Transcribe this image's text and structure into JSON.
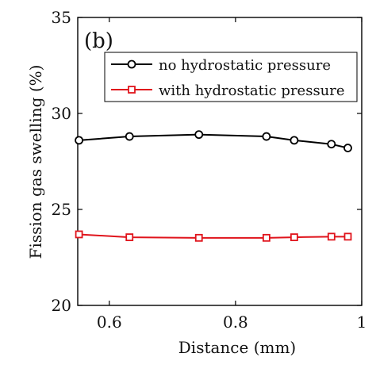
{
  "chart_data": {
    "type": "line",
    "panel_label": "(b)",
    "xlabel": "Distance (mm)",
    "ylabel": "Fission gas swelling (%)",
    "xlim": [
      0.55,
      1.0
    ],
    "ylim": [
      20,
      35
    ],
    "xticks": [
      0.6,
      0.8,
      1.0
    ],
    "xtick_labels": [
      "0.6",
      "0.8",
      "1"
    ],
    "yticks": [
      20,
      25,
      30,
      35
    ],
    "ytick_labels": [
      "20",
      "25",
      "30",
      "35"
    ],
    "grid": false,
    "legend_position": "top-right",
    "series": [
      {
        "name": "no hydrostatic pressure",
        "color": "#000000",
        "marker": "circle",
        "x": [
          0.552,
          0.632,
          0.742,
          0.849,
          0.893,
          0.952,
          0.978
        ],
        "y": [
          28.6,
          28.8,
          28.9,
          28.8,
          28.6,
          28.4,
          28.2
        ]
      },
      {
        "name": "with hydrostatic pressure",
        "color": "#e0141c",
        "marker": "square",
        "x": [
          0.552,
          0.632,
          0.742,
          0.849,
          0.893,
          0.952,
          0.978
        ],
        "y": [
          23.7,
          23.55,
          23.52,
          23.52,
          23.55,
          23.58,
          23.58
        ]
      }
    ]
  }
}
